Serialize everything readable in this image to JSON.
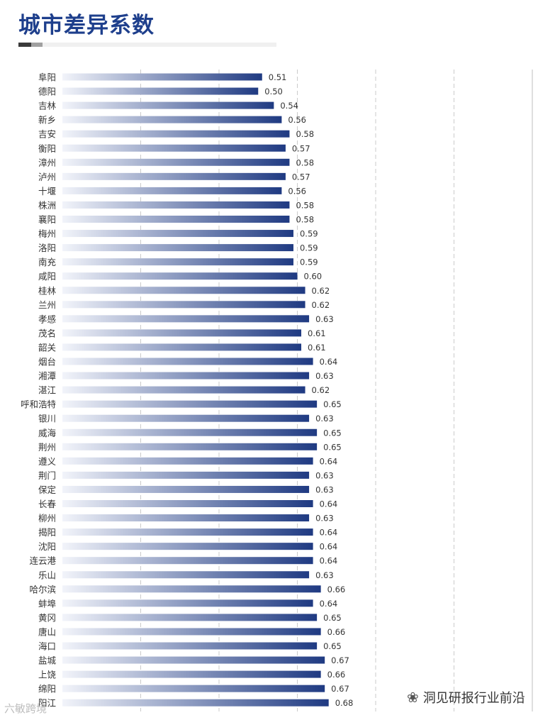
{
  "title": "城市差异系数",
  "watermark_right": "洞见研报行业前沿",
  "watermark_left": "六敏跨境",
  "colors": {
    "title": "#1e3f8c",
    "bar_dark": "#1f3a82",
    "bar_light": "#f2f4fa",
    "grid": "#bfbfbf"
  },
  "chart_data": {
    "type": "bar",
    "orientation": "horizontal",
    "categories": [
      "阜阳",
      "德阳",
      "吉林",
      "新乡",
      "吉安",
      "衡阳",
      "漳州",
      "泸州",
      "十堰",
      "株洲",
      "襄阳",
      "梅州",
      "洛阳",
      "南充",
      "咸阳",
      "桂林",
      "兰州",
      "孝感",
      "茂名",
      "韶关",
      "烟台",
      "湘潭",
      "湛江",
      "呼和浩特",
      "银川",
      "威海",
      "荆州",
      "遵义",
      "荆门",
      "保定",
      "长春",
      "柳州",
      "揭阳",
      "沈阳",
      "连云港",
      "乐山",
      "哈尔滨",
      "蚌埠",
      "黄冈",
      "唐山",
      "海口",
      "盐城",
      "上饶",
      "绵阳",
      "阳江"
    ],
    "values": [
      0.51,
      0.5,
      0.54,
      0.56,
      0.58,
      0.57,
      0.58,
      0.57,
      0.56,
      0.58,
      0.58,
      0.59,
      0.59,
      0.59,
      0.6,
      0.62,
      0.62,
      0.63,
      0.61,
      0.61,
      0.64,
      0.63,
      0.62,
      0.65,
      0.63,
      0.65,
      0.65,
      0.64,
      0.63,
      0.63,
      0.64,
      0.63,
      0.64,
      0.64,
      0.64,
      0.63,
      0.66,
      0.64,
      0.65,
      0.66,
      0.65,
      0.67,
      0.66,
      0.67,
      0.68
    ],
    "labels": [
      "0.51",
      "0.50",
      "0.54",
      "0.56",
      "0.58",
      "0.57",
      "0.58",
      "0.57",
      "0.56",
      "0.58",
      "0.58",
      "0.59",
      "0.59",
      "0.59",
      "0.60",
      "0.62",
      "0.62",
      "0.63",
      "0.61",
      "0.61",
      "0.64",
      "0.63",
      "0.62",
      "0.65",
      "0.63",
      "0.65",
      "0.65",
      "0.64",
      "0.63",
      "0.63",
      "0.64",
      "0.63",
      "0.64",
      "0.64",
      "0.64",
      "0.63",
      "0.66",
      "0.64",
      "0.65",
      "0.66",
      "0.65",
      "0.67",
      "0.66",
      "0.67",
      "0.68"
    ],
    "xlim": [
      0,
      1.2
    ],
    "gridlines": [
      0.2,
      0.4,
      0.6,
      0.8,
      1.0,
      1.2
    ],
    "grid": true,
    "legend": "none"
  }
}
